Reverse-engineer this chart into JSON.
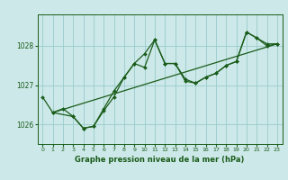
{
  "bg_color": "#cce8e8",
  "grid_color": "#99cccc",
  "line_color": "#1a5c1a",
  "xlabel": "Graphe pression niveau de la mer (hPa)",
  "xlim": [
    -0.5,
    23.5
  ],
  "ylim": [
    1025.5,
    1028.8
  ],
  "yticks": [
    1026,
    1027,
    1028
  ],
  "xticks": [
    0,
    1,
    2,
    3,
    4,
    5,
    6,
    7,
    8,
    9,
    10,
    11,
    12,
    13,
    14,
    15,
    16,
    17,
    18,
    19,
    20,
    21,
    22,
    23
  ],
  "series1": {
    "x": [
      0,
      1,
      2,
      3,
      4,
      5,
      6,
      7,
      8,
      9,
      10,
      11,
      12,
      13,
      14,
      15,
      16,
      17,
      18,
      19,
      20,
      21,
      22,
      23
    ],
    "y": [
      1026.7,
      1026.3,
      1026.4,
      1026.2,
      1025.9,
      1025.95,
      1026.4,
      1026.85,
      1027.2,
      1027.55,
      1027.8,
      1028.15,
      1027.55,
      1027.55,
      1027.15,
      1027.05,
      1027.2,
      1027.3,
      1027.5,
      1027.6,
      1028.35,
      1028.2,
      1028.05,
      1028.05
    ]
  },
  "series2": {
    "x": [
      1,
      3,
      4,
      5,
      6,
      7,
      8,
      9,
      10,
      11,
      12,
      13,
      14,
      15,
      16,
      17,
      18,
      19,
      20,
      21,
      22,
      23
    ],
    "y": [
      1026.3,
      1026.2,
      1025.9,
      1025.95,
      1026.35,
      1026.7,
      1027.2,
      1027.55,
      1027.45,
      1028.15,
      1027.55,
      1027.55,
      1027.1,
      1027.05,
      1027.2,
      1027.3,
      1027.5,
      1027.6,
      1028.35,
      1028.2,
      1028.0,
      1028.05
    ]
  },
  "series3": {
    "x": [
      1,
      23
    ],
    "y": [
      1026.3,
      1028.05
    ]
  },
  "figsize": [
    3.2,
    2.0
  ],
  "dpi": 100
}
